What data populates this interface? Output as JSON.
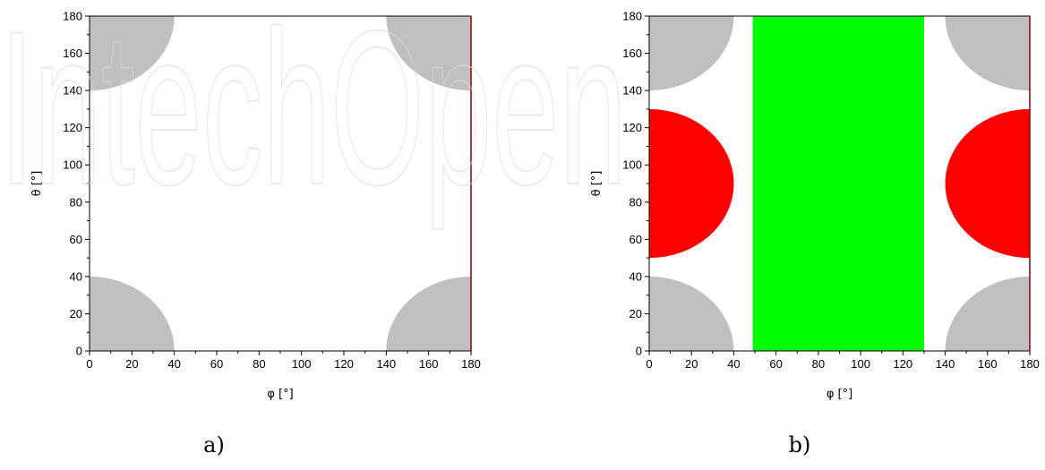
{
  "chart_data": [
    {
      "type": "heatmap",
      "panel_label": "a)",
      "xlabel": "φ [°]",
      "ylabel": "θ [°]",
      "xlim": [
        0,
        180
      ],
      "ylim": [
        0,
        180
      ],
      "xticks": [
        0,
        20,
        40,
        60,
        80,
        100,
        120,
        140,
        160,
        180
      ],
      "yticks": [
        0,
        20,
        40,
        60,
        80,
        100,
        120,
        140,
        160,
        180
      ],
      "background_color": "#ffffff",
      "regions": [
        {
          "shape": "quarter-disk",
          "corner": [
            0,
            0
          ],
          "radius": 40,
          "color": "#c0c0c0"
        },
        {
          "shape": "quarter-disk",
          "corner": [
            180,
            0
          ],
          "radius": 40,
          "color": "#c0c0c0"
        },
        {
          "shape": "quarter-disk",
          "corner": [
            0,
            180
          ],
          "radius": 40,
          "color": "#c0c0c0"
        },
        {
          "shape": "quarter-disk",
          "corner": [
            180,
            180
          ],
          "radius": 40,
          "color": "#c0c0c0"
        }
      ]
    },
    {
      "type": "heatmap",
      "panel_label": "b)",
      "xlabel": "φ [°]",
      "ylabel": "θ [°]",
      "xlim": [
        0,
        180
      ],
      "ylim": [
        0,
        180
      ],
      "xticks": [
        0,
        20,
        40,
        60,
        80,
        100,
        120,
        140,
        160,
        180
      ],
      "yticks": [
        0,
        20,
        40,
        60,
        80,
        100,
        120,
        140,
        160,
        180
      ],
      "background_color": "#ffffff",
      "regions": [
        {
          "shape": "quarter-disk",
          "corner": [
            0,
            0
          ],
          "radius": 40,
          "color": "#c0c0c0"
        },
        {
          "shape": "quarter-disk",
          "corner": [
            180,
            0
          ],
          "radius": 40,
          "color": "#c0c0c0"
        },
        {
          "shape": "quarter-disk",
          "corner": [
            0,
            180
          ],
          "radius": 40,
          "color": "#c0c0c0"
        },
        {
          "shape": "quarter-disk",
          "corner": [
            180,
            180
          ],
          "radius": 40,
          "color": "#c0c0c0"
        },
        {
          "shape": "half-disk",
          "center": [
            0,
            90
          ],
          "radius": 40,
          "color": "#ff0000"
        },
        {
          "shape": "half-disk",
          "center": [
            180,
            90
          ],
          "radius": 40,
          "color": "#ff0000"
        },
        {
          "shape": "band",
          "x_range": [
            49,
            130
          ],
          "color": "#00ff00"
        }
      ]
    }
  ],
  "watermark": {
    "text": "IntechOpen",
    "color": "#d9d9d9"
  }
}
